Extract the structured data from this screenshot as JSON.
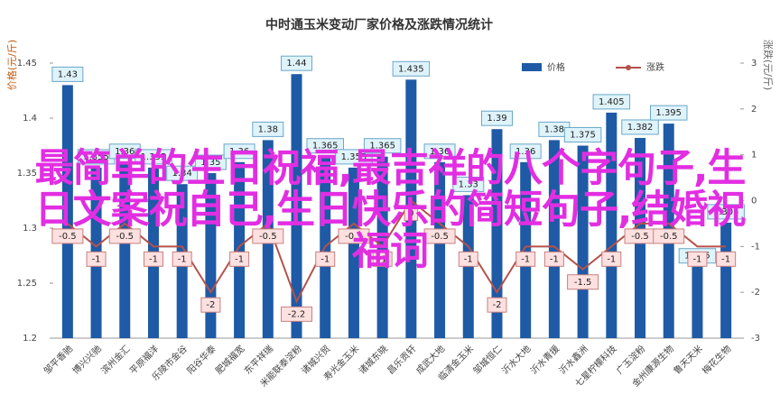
{
  "chart_data": {
    "type": "bar_line",
    "title": "中时通玉米变动厂家价格及涨跌情况统计",
    "ylabel": "价格(元/斤)",
    "y2label": "涨跌(元/斤)",
    "categories": [
      "邹平香驰",
      "博兴兴驰",
      "滨州金汇",
      "平原福洋",
      "乐陵市金谷",
      "阳谷华泰",
      "肥城福宽",
      "东平祥瑞",
      "米能联泰淀粉",
      "诸城兴贸",
      "寿光金玉米",
      "诸城东晓",
      "昌乐贡轩",
      "成武大地",
      "临清金玉米",
      "邹城恒仁",
      "沂水大地",
      "沂水青援",
      "沂水鑫洲",
      "七星柠檬科技",
      "广玉淀粉",
      "金州康源生物",
      "鲁天天米",
      "梅花生物"
    ],
    "series": [
      {
        "name": "价格",
        "color": "#1e5aa6",
        "values": [
          1.43,
          1.355,
          1.36,
          1.355,
          1.34,
          1.35,
          1.36,
          1.38,
          1.44,
          1.365,
          1.355,
          1.365,
          1.435,
          1.36,
          1.33,
          1.39,
          1.36,
          1.38,
          1.375,
          1.405,
          1.382,
          1.395,
          1.265,
          1.305
        ]
      },
      {
        "name": "涨跌",
        "color": "#b5524a",
        "axis": "y2",
        "values": [
          -0.5,
          -1,
          -0.5,
          -1,
          -1,
          -2,
          -1,
          -0.5,
          -2.2,
          -1,
          -0.5,
          -1,
          0,
          -0.5,
          -1,
          -2,
          -1,
          -1,
          -1.5,
          -1,
          -0.5,
          -0.5,
          -1,
          -1
        ]
      }
    ],
    "ylim": [
      1.2,
      1.45
    ],
    "yticks": [
      1.2,
      1.25,
      1.3,
      1.35,
      1.4,
      1.45
    ],
    "y2lim": [
      -3,
      3
    ],
    "y2ticks": [
      -3,
      -2,
      -1,
      0,
      1,
      2,
      3
    ],
    "legend": "top-right",
    "overlay": "最简单的生日祝福,最吉祥的八个字句子,生日文案祝自己,生日快乐的简短句子,结婚祝福词"
  }
}
